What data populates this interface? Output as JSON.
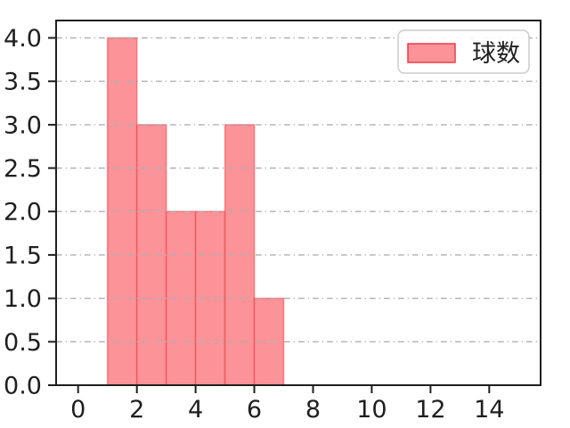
{
  "chart_data": {
    "type": "bar",
    "subtype": "histogram",
    "title": "",
    "xlabel": "",
    "ylabel": "",
    "bin_edges": [
      1,
      2,
      3,
      4,
      5,
      6,
      7
    ],
    "counts": [
      4,
      3,
      2,
      2,
      3,
      1
    ],
    "xlim": [
      -0.75,
      15.75
    ],
    "ylim": [
      0,
      4.2
    ],
    "xticks": [
      0,
      2,
      4,
      6,
      8,
      10,
      12,
      14
    ],
    "xtick_labels": [
      "0",
      "2",
      "4",
      "6",
      "8",
      "10",
      "12",
      "14"
    ],
    "yticks": [
      0,
      0.5,
      1,
      1.5,
      2,
      2.5,
      3,
      3.5,
      4
    ],
    "ytick_labels": [
      "0.0",
      "0.5",
      "1.0",
      "1.5",
      "2.0",
      "2.5",
      "3.0",
      "3.5",
      "4.0"
    ],
    "grid": true,
    "grid_axis": "y",
    "grid_linestyle": "dash-dot",
    "legend": {
      "label": "球数",
      "position": "upper right"
    },
    "colors": {
      "bar_fill": "#fc9399",
      "bar_edge": "#f0353e",
      "grid": "#b0b0b0",
      "axis": "#1f1f1f",
      "text": "#1f1f1f",
      "legend_border": "#cccccc",
      "legend_bg": "#ffffff"
    }
  }
}
